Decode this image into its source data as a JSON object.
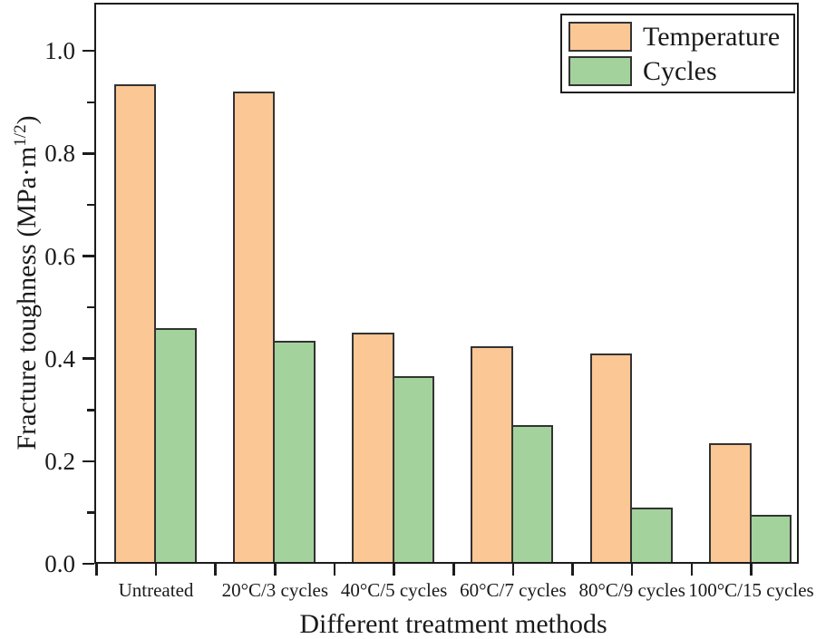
{
  "chart_data": {
    "type": "bar",
    "title": "",
    "xlabel": "Different treatment methods",
    "ylabel": "Fracture toughness (MPa·m^1/2)",
    "ylabel_parts": {
      "base": "Fracture toughness (MPa·m",
      "superscript": "1/2",
      "close": ")"
    },
    "categories": [
      "Untreated",
      "20°C/3 cycles",
      "40°C/5 cycles",
      "60°C/7 cycles",
      "80°C/9 cycles",
      "100°C/15 cycles"
    ],
    "series": [
      {
        "name": "Temperature",
        "color": "#fac795",
        "edge_color": "#333333",
        "values": [
          0.935,
          0.92,
          0.45,
          0.425,
          0.41,
          0.235
        ]
      },
      {
        "name": "Cycles",
        "color": "#a4d29d",
        "edge_color": "#333333",
        "values": [
          0.46,
          0.435,
          0.365,
          0.27,
          0.11,
          0.095
        ]
      }
    ],
    "ylim": [
      0,
      1.094
    ],
    "yticks_major": [
      0.0,
      0.2,
      0.4,
      0.6,
      0.8,
      1.0
    ],
    "yticks_minor": [
      0.1,
      0.3,
      0.5,
      0.7,
      0.9
    ],
    "ytick_decimals": 1,
    "grid": false,
    "legend_position": "top-right",
    "legend_entries": [
      "Temperature",
      "Cycles"
    ],
    "frame_color": "#1c1c1c",
    "text_color": "#1a1a1a",
    "background": "#ffffff"
  }
}
